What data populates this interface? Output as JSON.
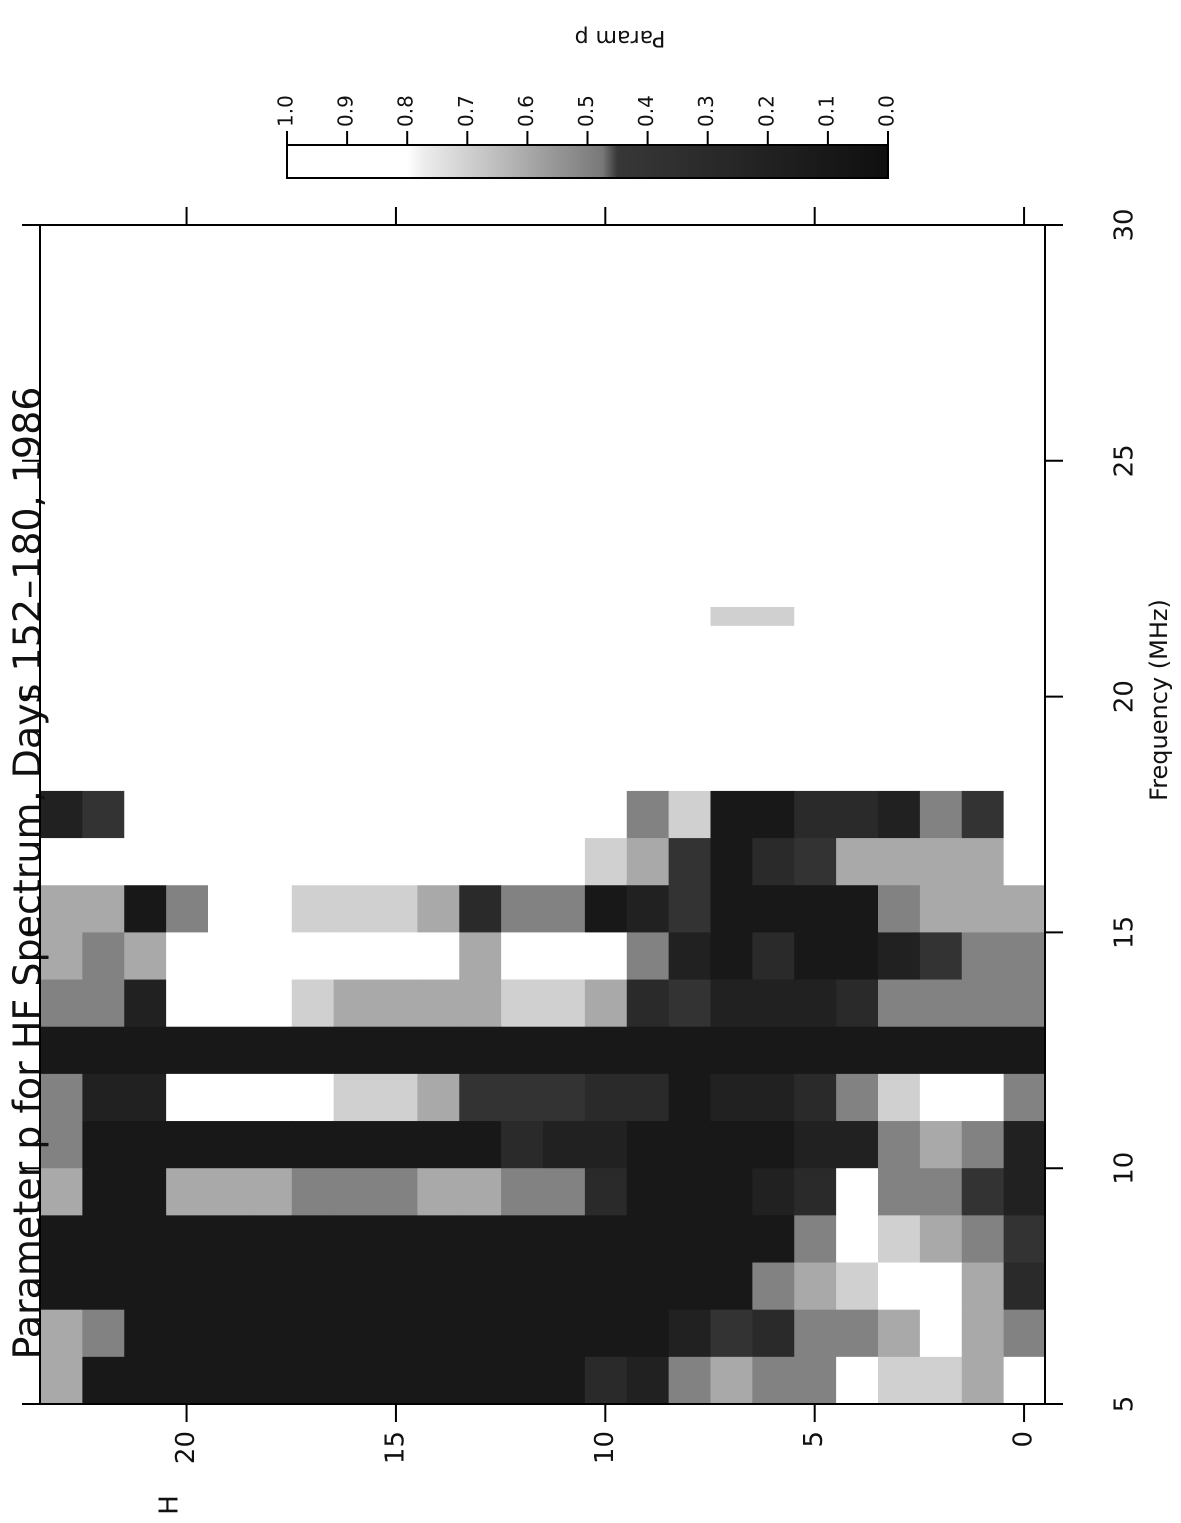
{
  "chart_data": {
    "type": "heatmap",
    "title": "Parameter p for HF Spectrum, Days 152–180, 1986",
    "x_label": "Frequency (MHz)",
    "y_label": "H",
    "x_bins": [
      5,
      6,
      7,
      8,
      9,
      10,
      11,
      12,
      13,
      14,
      15,
      16,
      17,
      18,
      21.5,
      21.9,
      30
    ],
    "hours": [
      0,
      1,
      2,
      3,
      4,
      5,
      6,
      7,
      8,
      9,
      10,
      11,
      12,
      13,
      14,
      15,
      16,
      17,
      18,
      19,
      20,
      21,
      22,
      23
    ],
    "values": [
      [
        0.9,
        0.5,
        0.3,
        0.4,
        0.2,
        0.2,
        0.5,
        0.1,
        0.5,
        0.5,
        0.6,
        0.9,
        0.8,
        1,
        1,
        1
      ],
      [
        0.6,
        0.6,
        0.6,
        0.5,
        0.4,
        0.5,
        0.8,
        0.1,
        0.5,
        0.5,
        0.6,
        0.6,
        0.4,
        1,
        1,
        1
      ],
      [
        0.7,
        0.8,
        0.9,
        0.6,
        0.5,
        0.6,
        0.9,
        0.1,
        0.5,
        0.4,
        0.6,
        0.6,
        0.5,
        1,
        1,
        1
      ],
      [
        0.7,
        0.6,
        0.9,
        0.7,
        0.5,
        0.5,
        0.7,
        0.1,
        0.5,
        0.2,
        0.5,
        0.6,
        0.2,
        1,
        1,
        1
      ],
      [
        0.8,
        0.5,
        0.7,
        0.8,
        0.9,
        0.2,
        0.5,
        0.1,
        0.3,
        0.1,
        0.1,
        0.6,
        0.3,
        1,
        1,
        1
      ],
      [
        0.5,
        0.5,
        0.6,
        0.5,
        0.3,
        0.2,
        0.3,
        0.1,
        0.2,
        0.1,
        0.1,
        0.4,
        0.3,
        1,
        1,
        1
      ],
      [
        0.5,
        0.3,
        0.5,
        0.1,
        0.2,
        0.1,
        0.2,
        0.1,
        0.2,
        0.3,
        0.1,
        0.3,
        0.1,
        1,
        0.7,
        1
      ],
      [
        0.6,
        0.4,
        0.1,
        0.1,
        0.1,
        0.1,
        0.2,
        0.1,
        0.2,
        0.1,
        0.1,
        0.1,
        0.1,
        1,
        0.7,
        1
      ],
      [
        0.5,
        0.2,
        0.1,
        0.1,
        0.1,
        0.1,
        0.1,
        0.1,
        0.4,
        0.2,
        0.4,
        0.4,
        0.7,
        1,
        1,
        1
      ],
      [
        0.2,
        0.1,
        0.1,
        0.1,
        0.1,
        0.1,
        0.3,
        0.1,
        0.3,
        0.5,
        0.2,
        0.6,
        0.5,
        1,
        1,
        1
      ],
      [
        0.3,
        0.1,
        0.1,
        0.1,
        0.3,
        0.2,
        0.3,
        0.1,
        0.6,
        0.8,
        0.1,
        0.7,
        0.9,
        1,
        1,
        1
      ],
      [
        0.1,
        0.1,
        0.1,
        0.1,
        0.5,
        0.2,
        0.4,
        0.1,
        0.7,
        0.9,
        0.5,
        0.8,
        0.9,
        1,
        1,
        1
      ],
      [
        0.1,
        0.1,
        0.1,
        0.1,
        0.5,
        0.3,
        0.4,
        0.1,
        0.7,
        0.9,
        0.5,
        0.9,
        0.9,
        1,
        1,
        1
      ],
      [
        0.1,
        0.1,
        0.1,
        0.1,
        0.6,
        0.1,
        0.4,
        0.1,
        0.6,
        0.6,
        0.3,
        0.9,
        0.9,
        1,
        1,
        1
      ],
      [
        0.1,
        0.1,
        0.1,
        0.1,
        0.6,
        0.1,
        0.6,
        0.1,
        0.6,
        0.8,
        0.6,
        1,
        0.9,
        1,
        1,
        1
      ],
      [
        0.1,
        0.1,
        0.1,
        0.1,
        0.5,
        0.1,
        0.7,
        0.1,
        0.6,
        0.9,
        0.7,
        1,
        0.9,
        1,
        1,
        1
      ],
      [
        0.1,
        0.1,
        0.1,
        0.1,
        0.5,
        0.1,
        0.7,
        0.1,
        0.6,
        0.9,
        0.7,
        1,
        0.9,
        1,
        1,
        1
      ],
      [
        0.1,
        0.1,
        0.1,
        0.1,
        0.5,
        0.1,
        0.8,
        0.1,
        0.7,
        0.9,
        0.7,
        1,
        0.9,
        1,
        1,
        1
      ],
      [
        0.1,
        0.1,
        0.1,
        0.1,
        0.6,
        0.1,
        0.8,
        0.1,
        0.8,
        0.9,
        0.9,
        1,
        1,
        1,
        1,
        1
      ],
      [
        0.1,
        0.1,
        0.1,
        0.1,
        0.6,
        0.1,
        0.9,
        0.1,
        0.8,
        0.9,
        0.9,
        1,
        1,
        1,
        1,
        1
      ],
      [
        0.1,
        0.1,
        0.1,
        0.1,
        0.6,
        0.1,
        0.9,
        0.1,
        0.9,
        0.8,
        0.5,
        1,
        1,
        1,
        1,
        1
      ],
      [
        0.1,
        0.1,
        0.1,
        0.1,
        0.1,
        0.1,
        0.2,
        0.1,
        0.2,
        0.6,
        0.1,
        1,
        1,
        1,
        1,
        1
      ],
      [
        0.1,
        0.5,
        0.1,
        0.1,
        0.1,
        0.1,
        0.2,
        0.1,
        0.5,
        0.5,
        0.6,
        1,
        0.4,
        1,
        1,
        1
      ],
      [
        0.6,
        0.6,
        0.1,
        0.1,
        0.6,
        0.5,
        0.5,
        0.1,
        0.5,
        0.6,
        0.6,
        1,
        0.2,
        1,
        1,
        1
      ]
    ],
    "xlim": [
      5,
      30
    ],
    "xticks": [
      5,
      10,
      15,
      20,
      25,
      30
    ],
    "ylim": [
      -0.5,
      23.5
    ],
    "yticks": [
      0,
      5,
      10,
      15,
      20
    ],
    "colorbar": {
      "label": "Param p",
      "lim": [
        0,
        1
      ],
      "ticks": [
        {
          "value": 0,
          "label": "0.0"
        },
        0.1,
        0.2,
        0.3,
        0.4,
        0.5,
        0.6,
        0.7,
        0.8,
        0.9,
        {
          "value": 1,
          "label": "1.0"
        }
      ]
    }
  }
}
